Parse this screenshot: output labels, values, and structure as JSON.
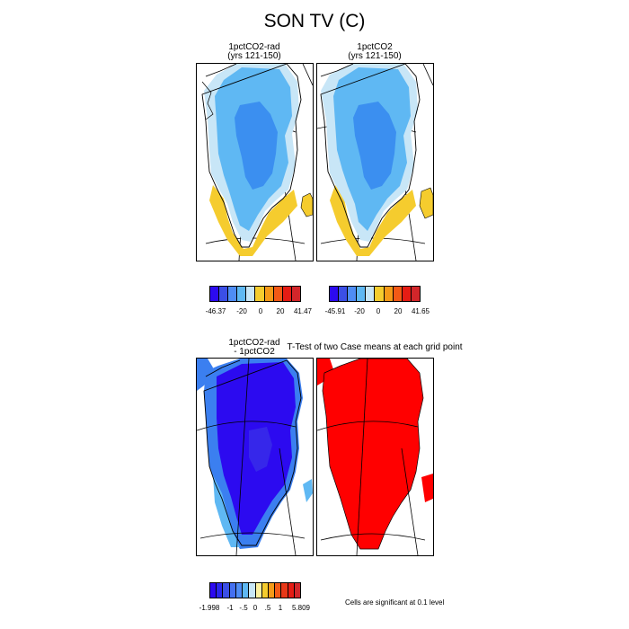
{
  "title": "SON TV (C)",
  "panels": [
    {
      "title_line1": "1pctCO2-rad",
      "title_line2": "(yrs 121-150)"
    },
    {
      "title_line1": "1pctCO2",
      "title_line2": "(yrs 121-150)"
    },
    {
      "title_line1": "1pctCO2-rad",
      "title_line2": "- 1pctCO2"
    },
    {
      "title_line1": "T-Test of two Case means at each grid point",
      "title_line2": ""
    }
  ],
  "legends": [
    {
      "colors": [
        "#2c0af0",
        "#3b4fe6",
        "#4f8df5",
        "#5fb8f3",
        "#c8e6f7",
        "#f5cc2e",
        "#f59a18",
        "#f25a16",
        "#e51c14",
        "#d2262a"
      ],
      "ticks": [
        "-46.37",
        "-20",
        "0",
        "20",
        "41.47"
      ]
    },
    {
      "colors": [
        "#2c0af0",
        "#3b4fe6",
        "#4f8df5",
        "#5fb8f3",
        "#c8e6f7",
        "#f5cc2e",
        "#f59a18",
        "#f25a16",
        "#e51c14",
        "#d2262a"
      ],
      "ticks": [
        "-45.91",
        "-20",
        "0",
        "20",
        "41.65"
      ]
    },
    {
      "colors": [
        "#2c0af0",
        "#2a27ee",
        "#3b4fe6",
        "#4470f0",
        "#4f8df5",
        "#5fb8f3",
        "#c8e6f7",
        "#fbf0a0",
        "#f5cc2e",
        "#f59a18",
        "#f25a16",
        "#e83818",
        "#e51c14",
        "#d2262a"
      ],
      "ticks": [
        "-1.998",
        "-1",
        "-.5",
        "0",
        ".5",
        "1",
        "5.809"
      ]
    }
  ],
  "significance_note": "Cells are significant at 0.1 level",
  "colors": {
    "deep_blue": "#2c0af0",
    "mid_blue": "#3b7ff0",
    "light_blue": "#5fb8f3",
    "pale_blue": "#c8e6f7",
    "yellow": "#f5cc2e",
    "red": "#ff0000",
    "coast_line": "#000000"
  }
}
